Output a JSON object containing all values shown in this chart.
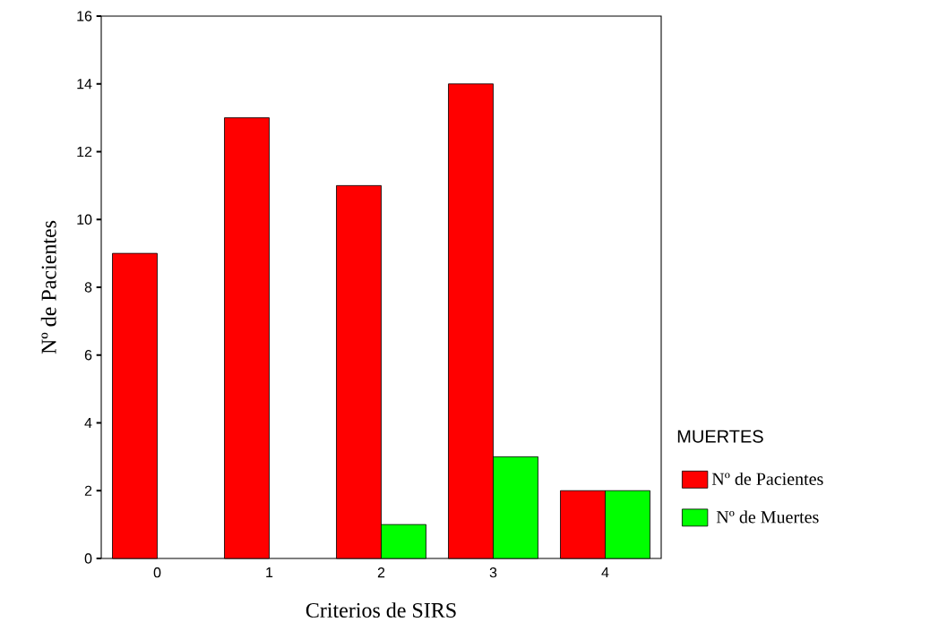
{
  "chart_data": {
    "type": "bar",
    "xlabel": "Criterios de SIRS",
    "ylabel": "Nº de Pacientes",
    "legend_title": "MUERTES",
    "legend": "right",
    "categories": [
      "0",
      "1",
      "2",
      "3",
      "4"
    ],
    "series": [
      {
        "name": "Nº de Pacientes",
        "color": "#ff0000",
        "values": [
          9,
          13,
          11,
          14,
          2
        ]
      },
      {
        "name": "Nº de Muertes",
        "color": "#00ff00",
        "values": [
          0,
          0,
          1,
          3,
          2
        ]
      }
    ],
    "ylim": [
      0,
      16
    ],
    "yticks": [
      0,
      2,
      4,
      6,
      8,
      10,
      12,
      14,
      16
    ]
  }
}
